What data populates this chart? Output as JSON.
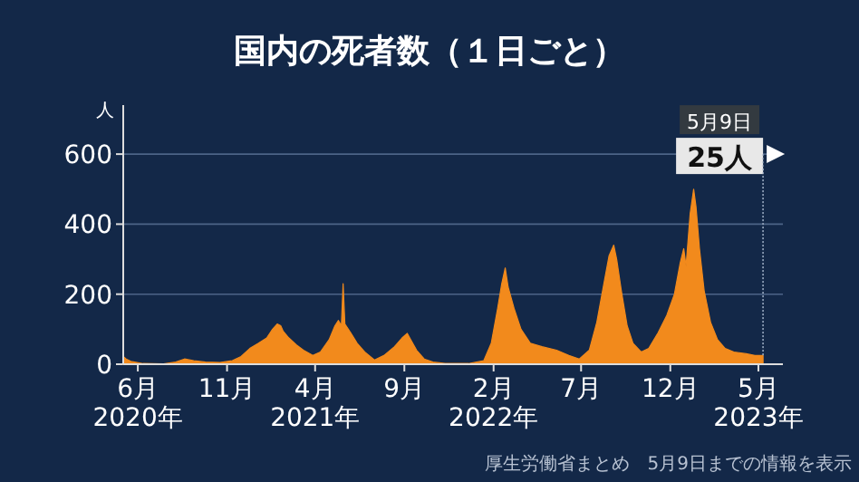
{
  "chart_data": {
    "type": "area",
    "title": "国内の死者数（１日ごと）",
    "ylabel": "人",
    "color": "#f28a1c",
    "x": [
      "2020-05-07",
      "2020-05-12",
      "2020-05-20",
      "2020-06-10",
      "2020-07-15",
      "2020-08-05",
      "2020-08-20",
      "2020-09-05",
      "2020-09-25",
      "2020-10-20",
      "2020-11-10",
      "2020-11-25",
      "2020-12-10",
      "2020-12-25",
      "2021-01-08",
      "2021-01-18",
      "2021-01-26",
      "2021-02-01",
      "2021-02-05",
      "2021-02-15",
      "2021-02-28",
      "2021-03-12",
      "2021-03-28",
      "2021-04-10",
      "2021-04-25",
      "2021-05-05",
      "2021-05-11",
      "2021-05-16",
      "2021-05-19",
      "2021-05-22",
      "2021-06-01",
      "2021-06-12",
      "2021-06-25",
      "2021-07-12",
      "2021-07-28",
      "2021-08-15",
      "2021-08-28",
      "2021-09-06",
      "2021-09-12",
      "2021-09-22",
      "2021-10-05",
      "2021-10-20",
      "2021-11-10",
      "2021-12-20",
      "2022-01-15",
      "2022-01-28",
      "2022-02-08",
      "2022-02-15",
      "2022-02-21",
      "2022-02-26",
      "2022-03-08",
      "2022-03-20",
      "2022-04-05",
      "2022-04-25",
      "2022-05-20",
      "2022-06-10",
      "2022-06-28",
      "2022-07-15",
      "2022-07-28",
      "2022-08-08",
      "2022-08-18",
      "2022-08-26",
      "2022-08-31",
      "2022-09-08",
      "2022-09-18",
      "2022-09-28",
      "2022-10-12",
      "2022-10-25",
      "2022-11-10",
      "2022-11-25",
      "2022-12-08",
      "2022-12-18",
      "2022-12-24",
      "2022-12-28",
      "2023-01-04",
      "2023-01-10",
      "2023-01-14",
      "2023-01-20",
      "2023-01-28",
      "2023-02-08",
      "2023-02-20",
      "2023-03-05",
      "2023-03-20",
      "2023-04-10",
      "2023-04-25",
      "2023-05-09"
    ],
    "values": [
      22,
      15,
      8,
      2,
      1,
      6,
      15,
      10,
      6,
      5,
      10,
      22,
      45,
      60,
      75,
      100,
      115,
      110,
      95,
      75,
      55,
      40,
      25,
      35,
      70,
      110,
      125,
      110,
      230,
      115,
      90,
      60,
      35,
      12,
      25,
      50,
      75,
      88,
      70,
      40,
      15,
      6,
      2,
      2,
      10,
      60,
      160,
      230,
      275,
      220,
      160,
      100,
      60,
      50,
      40,
      25,
      15,
      40,
      120,
      220,
      310,
      340,
      300,
      210,
      110,
      60,
      35,
      45,
      90,
      140,
      200,
      290,
      330,
      280,
      430,
      500,
      450,
      330,
      210,
      120,
      70,
      45,
      35,
      30,
      25,
      25
    ],
    "xlim": [
      "2020-05-07",
      "2023-06-12"
    ],
    "xticks": [
      {
        "value": "2020-06-01",
        "label": "6月\n2020年"
      },
      {
        "value": "2020-11-01",
        "label": "11月"
      },
      {
        "value": "2021-04-01",
        "label": "4月\n2021年"
      },
      {
        "value": "2021-09-01",
        "label": "9月"
      },
      {
        "value": "2022-02-01",
        "label": "2月\n2022年"
      },
      {
        "value": "2022-07-01",
        "label": "7月"
      },
      {
        "value": "2022-12-01",
        "label": "12月"
      },
      {
        "value": "2023-05-01",
        "label": "5月\n2023年"
      }
    ],
    "ylim": [
      0,
      740
    ],
    "yticks": [
      0,
      200,
      400,
      600
    ],
    "grid": "y",
    "annotations": [
      {
        "text": "5月9日",
        "x": "2023-05-09",
        "y": 25
      },
      {
        "text": "25人",
        "x": "2023-05-09",
        "y": 25
      },
      "厚生労働省まとめ　5月9日までの情報を表示"
    ]
  }
}
